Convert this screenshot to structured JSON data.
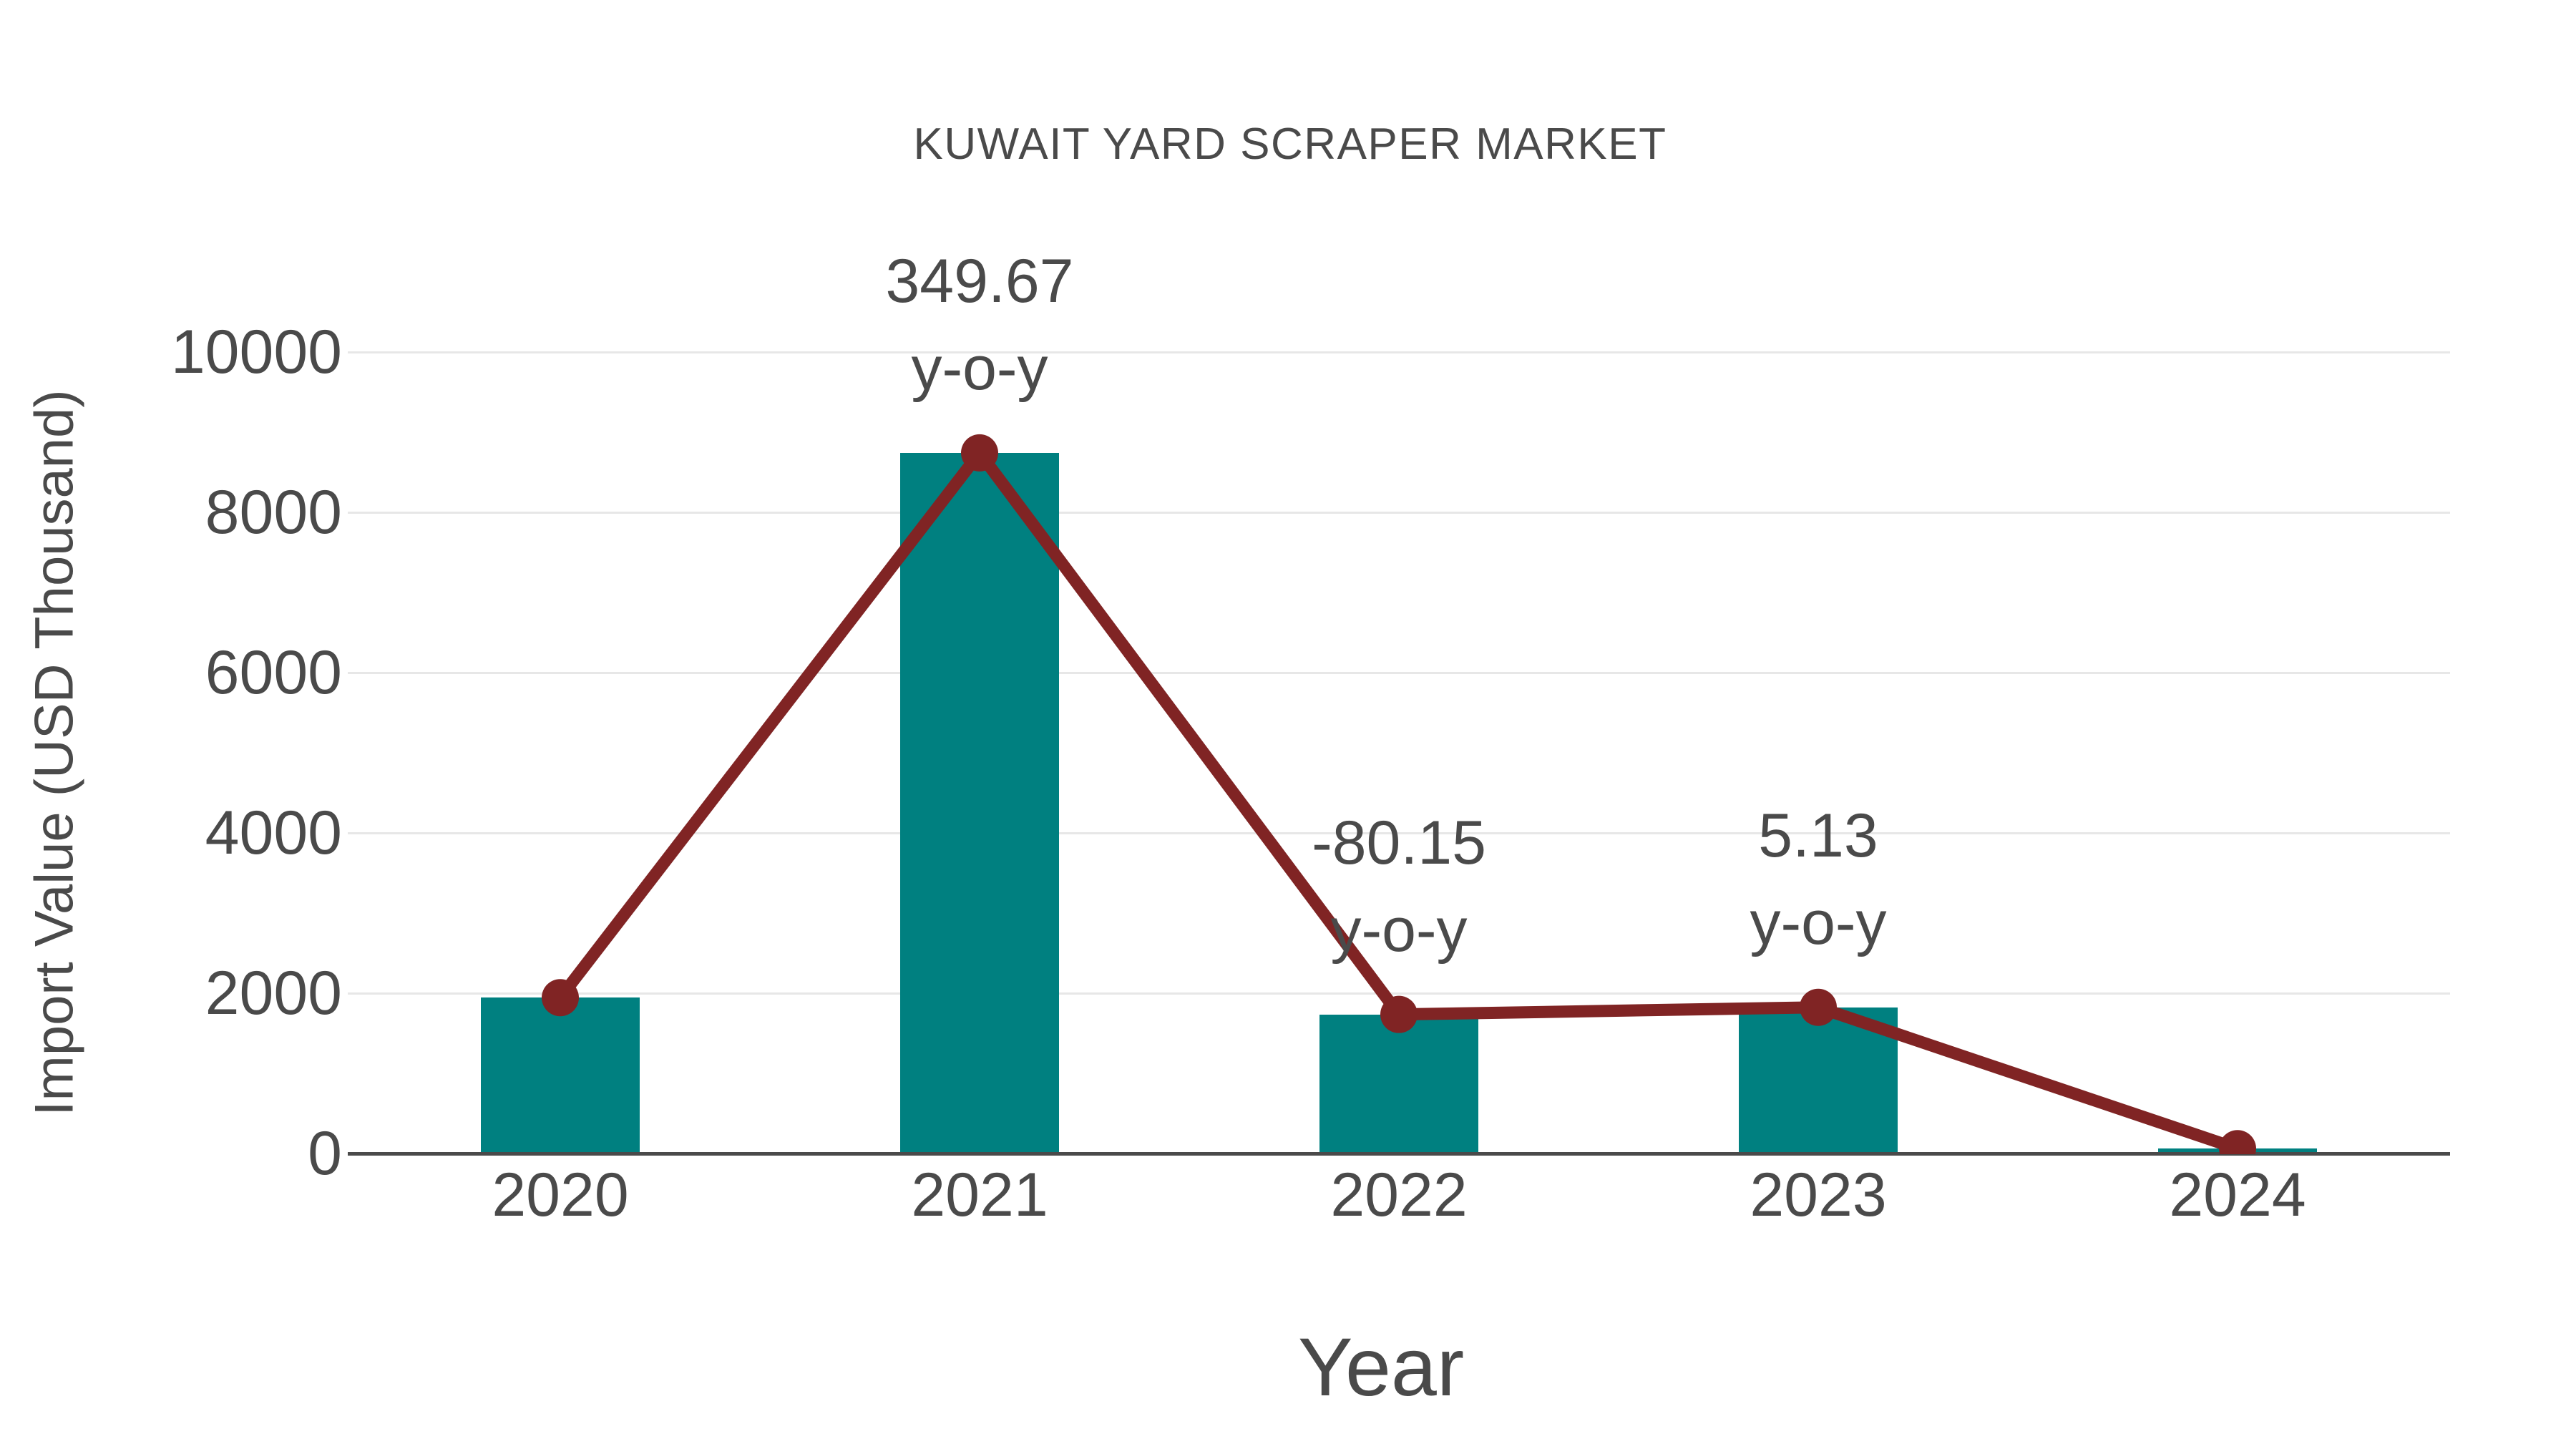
{
  "title": "KUWAIT YARD SCRAPER MARKET",
  "chart_data": {
    "type": "bar",
    "title": "KUWAIT YARD SCRAPER MARKET",
    "xlabel": "Year",
    "ylabel": "Import Value (USD Thousand)",
    "categories": [
      "2020",
      "2021",
      "2022",
      "2023",
      "2024"
    ],
    "series": [
      {
        "name": "import-value-bars",
        "type": "bar",
        "values": [
          1944,
          8742,
          1735,
          1824,
          60
        ],
        "color": "#008080"
      },
      {
        "name": "import-value-trend-line",
        "type": "line",
        "values": [
          1944,
          8742,
          1735,
          1824,
          60
        ],
        "color": "#802424"
      }
    ],
    "annotations": [
      {
        "category": "2021",
        "value_label": "349.67",
        "unit_label": "y-o-y"
      },
      {
        "category": "2022",
        "value_label": "-80.15",
        "unit_label": "y-o-y"
      },
      {
        "category": "2023",
        "value_label": "5.13",
        "unit_label": "y-o-y"
      }
    ],
    "ylim": [
      0,
      10000
    ],
    "yticks": [
      0,
      2000,
      4000,
      6000,
      8000,
      10000
    ],
    "grid": true,
    "legend": false
  },
  "colors": {
    "bar": "#008080",
    "line": "#802424",
    "grid": "#e7e7e7",
    "axis": "#4a4a4a",
    "text": "#4a4a4a",
    "background": "#ffffff"
  }
}
